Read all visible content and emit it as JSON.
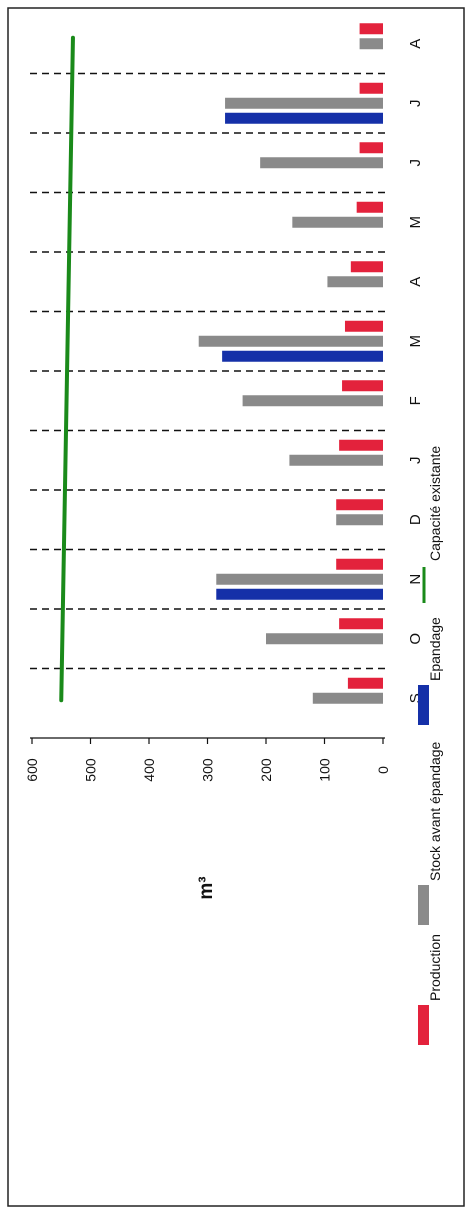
{
  "chart_data": {
    "type": "bar",
    "orientation": "rotated-90-clockwise",
    "ylabel": "m³",
    "ylim": [
      0,
      600
    ],
    "yticks": [
      "600",
      "500",
      "400",
      "300",
      "200",
      "100",
      "0"
    ],
    "categories": [
      "S",
      "O",
      "N",
      "D",
      "J",
      "F",
      "M",
      "A",
      "M",
      "J",
      "J",
      "A"
    ],
    "series": [
      {
        "name": "Production",
        "color": "#e3223c",
        "values": [
          60,
          75,
          80,
          80,
          75,
          70,
          65,
          55,
          45,
          40,
          40,
          40
        ]
      },
      {
        "name": "Stock avant épandage",
        "color": "#8a8a8a",
        "values": [
          120,
          200,
          285,
          80,
          160,
          240,
          315,
          95,
          155,
          210,
          270,
          40
        ]
      },
      {
        "name": "Epandage",
        "color": "#1530a8",
        "values": [
          0,
          0,
          285,
          0,
          0,
          0,
          275,
          0,
          0,
          0,
          270,
          0
        ]
      }
    ],
    "capacity_line": {
      "name": "Capacité existante",
      "color": "#1a8a1a",
      "value": [
        550,
        530
      ]
    },
    "grid": "dashed vertical separators between months",
    "legend_position": "right"
  }
}
